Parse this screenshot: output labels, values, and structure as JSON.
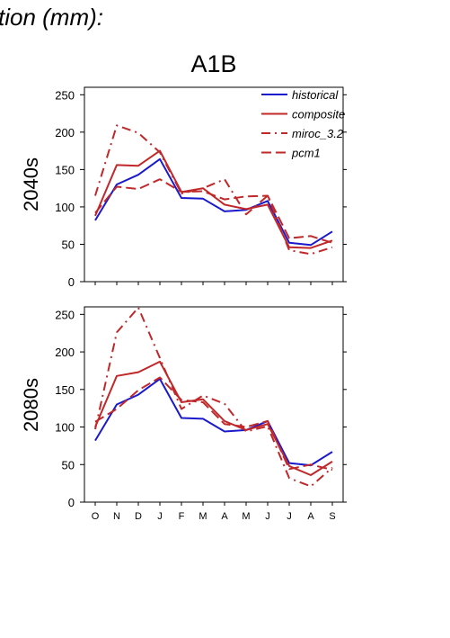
{
  "header": {
    "top_title": "tion (mm):",
    "scenario": "A1B"
  },
  "colors": {
    "historical": "#1a1acc",
    "model": "#c0282a",
    "axis": "#000000"
  },
  "chart_data": [
    {
      "type": "line",
      "panel_label": "2040s",
      "categories": [
        "O",
        "N",
        "D",
        "J",
        "F",
        "M",
        "A",
        "M",
        "J",
        "J",
        "A",
        "S"
      ],
      "ylim": [
        0,
        260
      ],
      "yticks": [
        0,
        50,
        100,
        150,
        200,
        250
      ],
      "legend": {
        "placement": "top-right"
      },
      "series": [
        {
          "name": "historical",
          "style": "solid",
          "color": "#1a1acc",
          "values": [
            82,
            130,
            143,
            164,
            112,
            111,
            94,
            96,
            108,
            52,
            49,
            67
          ]
        },
        {
          "name": "composite",
          "style": "solid",
          "color": "#c0282a",
          "values": [
            88,
            156,
            155,
            175,
            120,
            125,
            103,
            97,
            103,
            46,
            45,
            55
          ]
        },
        {
          "name": "miroc_3.2",
          "style": "dashdot",
          "color": "#c0282a",
          "values": [
            115,
            209,
            199,
            173,
            118,
            125,
            137,
            90,
            115,
            42,
            37,
            46
          ]
        },
        {
          "name": "pcm1",
          "style": "dash",
          "color": "#c0282a",
          "values": [
            92,
            127,
            124,
            137,
            120,
            121,
            110,
            114,
            115,
            58,
            61,
            52
          ]
        }
      ]
    },
    {
      "type": "line",
      "panel_label": "2080s",
      "categories": [
        "O",
        "N",
        "D",
        "J",
        "F",
        "M",
        "A",
        "M",
        "J",
        "J",
        "A",
        "S"
      ],
      "ylim": [
        0,
        260
      ],
      "yticks": [
        0,
        50,
        100,
        150,
        200,
        250
      ],
      "series": [
        {
          "name": "historical",
          "style": "solid",
          "color": "#1a1acc",
          "values": [
            82,
            130,
            143,
            164,
            112,
            111,
            94,
            96,
            108,
            52,
            49,
            67
          ]
        },
        {
          "name": "composite",
          "style": "solid",
          "color": "#c0282a",
          "values": [
            100,
            168,
            173,
            187,
            133,
            137,
            108,
            96,
            104,
            48,
            36,
            54
          ]
        },
        {
          "name": "miroc_3.2",
          "style": "dashdot",
          "color": "#c0282a",
          "values": [
            97,
            226,
            259,
            192,
            124,
            142,
            131,
            94,
            101,
            32,
            21,
            46
          ]
        },
        {
          "name": "pcm1",
          "style": "dash",
          "color": "#c0282a",
          "values": [
            107,
            124,
            149,
            166,
            136,
            133,
            104,
            100,
            108,
            44,
            50,
            43
          ]
        }
      ]
    }
  ]
}
